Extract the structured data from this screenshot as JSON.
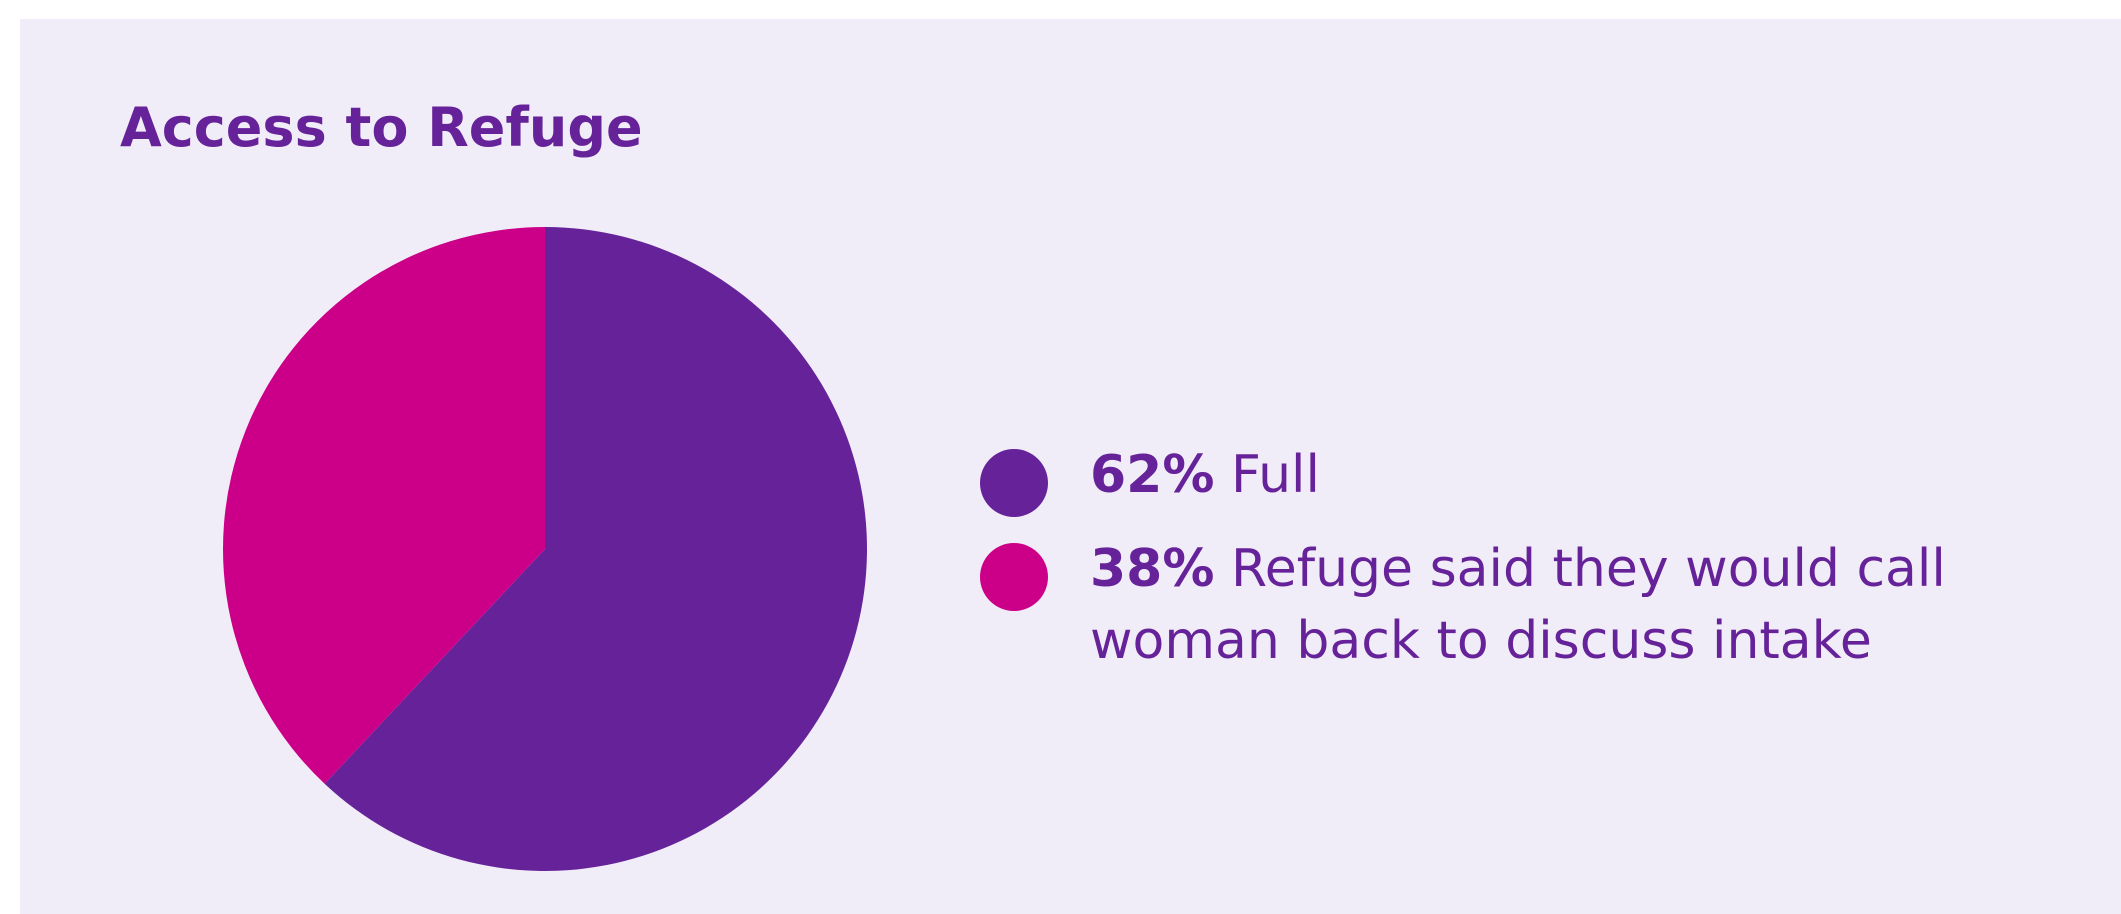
{
  "chart_data": {
    "type": "pie",
    "title": "Access to Refuge",
    "slices": [
      {
        "pct": "62%",
        "label": "Full",
        "value": 62,
        "color": "#662299"
      },
      {
        "pct": "38%",
        "label": "Refuge said they would call woman back to discuss intake",
        "value": 38,
        "color": "#cc0088"
      }
    ]
  }
}
